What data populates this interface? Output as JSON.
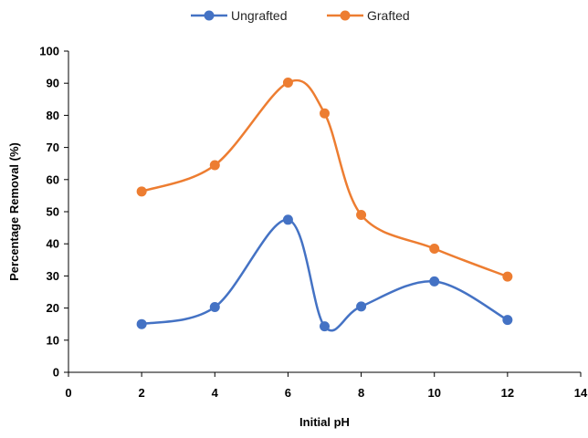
{
  "chart_data": {
    "type": "scatter",
    "title": "",
    "xlabel": "Initial pH",
    "ylabel": "Percentage Removal (%)",
    "xlim": [
      0,
      14
    ],
    "ylim": [
      0,
      100
    ],
    "xticks": [
      0,
      2,
      4,
      6,
      8,
      10,
      12,
      14
    ],
    "yticks": [
      0,
      10,
      20,
      30,
      40,
      50,
      60,
      70,
      80,
      90,
      100
    ],
    "grid": false,
    "smooth_lines": true,
    "legend_position": "top-center",
    "series": [
      {
        "name": "Ungrafted",
        "color": "#4472C4",
        "x": [
          2,
          4,
          6,
          7,
          8,
          10,
          12
        ],
        "y": [
          15,
          20.3,
          47.5,
          14.3,
          20.5,
          28.3,
          16.3
        ]
      },
      {
        "name": "Grafted",
        "color": "#ED7D31",
        "x": [
          2,
          4,
          6,
          7,
          8,
          10,
          12
        ],
        "y": [
          56.3,
          64.5,
          90.2,
          80.6,
          49,
          38.5,
          29.8
        ]
      }
    ]
  }
}
